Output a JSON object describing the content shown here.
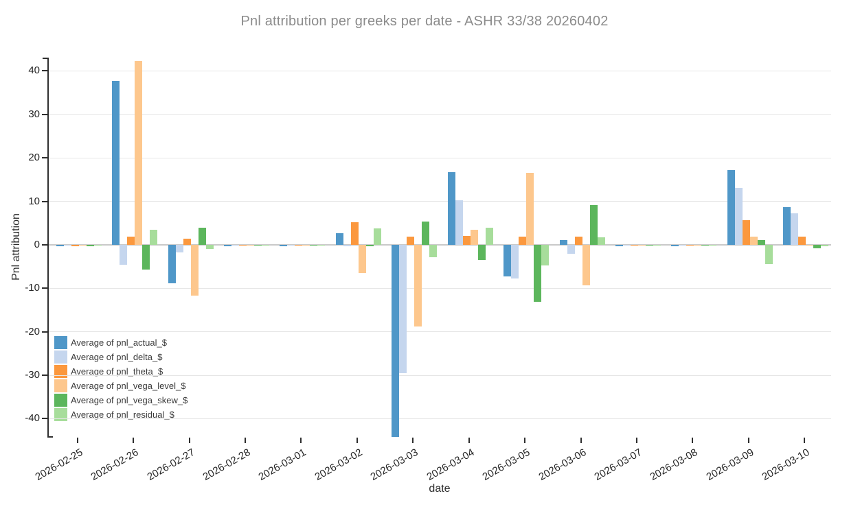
{
  "title": "Pnl attribution per greeks per date - ASHR 33/38 20260402",
  "chart_data": {
    "type": "bar",
    "title": "Pnl attribution per greeks per date - ASHR 33/38 20260402",
    "xlabel": "date",
    "ylabel": "Pnl attribution",
    "ylim": [
      -44.2,
      42.9
    ],
    "yticks": [
      40,
      30,
      20,
      10,
      0,
      -10,
      -20,
      -30,
      -40
    ],
    "grid": true,
    "legend_position": "inside-bottom-left",
    "categories": [
      "2026-02-25",
      "2026-02-26",
      "2026-02-27",
      "2026-02-28",
      "2026-03-01",
      "2026-03-02",
      "2026-03-03",
      "2026-03-04",
      "2026-03-05",
      "2026-03-06",
      "2026-03-07",
      "2026-03-08",
      "2026-03-09",
      "2026-03-10"
    ],
    "series": [
      {
        "name": "Average of pnl_actual_$",
        "color": "#4F97C8",
        "values": [
          -0.3,
          37.7,
          -8.8,
          -0.3,
          -0.3,
          2.6,
          -44.2,
          16.7,
          -7.2,
          1.1,
          -0.3,
          -0.3,
          17.2,
          8.7
        ]
      },
      {
        "name": "Average of pnl_delta_$",
        "color": "#C5D6EE",
        "values": [
          -0.2,
          -4.6,
          -1.8,
          -0.2,
          -0.2,
          -0.3,
          -29.5,
          10.3,
          -7.8,
          -2.1,
          -0.2,
          -0.2,
          13.0,
          7.3
        ]
      },
      {
        "name": "Average of pnl_theta_$",
        "color": "#FB983E",
        "values": [
          -0.3,
          1.9,
          1.4,
          -0.2,
          -0.2,
          5.2,
          1.9,
          2.1,
          1.8,
          1.8,
          -0.2,
          -0.2,
          5.7,
          1.9
        ]
      },
      {
        "name": "Average of pnl_vega_level_$",
        "color": "#FDC78D",
        "values": [
          -0.2,
          42.3,
          -11.7,
          -0.2,
          -0.2,
          -6.5,
          -18.8,
          3.4,
          16.5,
          -9.4,
          -0.2,
          -0.2,
          1.8,
          -0.2
        ]
      },
      {
        "name": "Average of pnl_vega_skew_$",
        "color": "#5CB65C",
        "values": [
          -0.3,
          -5.7,
          4.0,
          -0.2,
          -0.2,
          -0.4,
          5.4,
          -3.5,
          -13.1,
          9.1,
          -0.2,
          -0.2,
          1.1,
          -0.8
        ]
      },
      {
        "name": "Average of pnl_residual_$",
        "color": "#A7DD9B",
        "values": [
          -0.2,
          3.5,
          -0.9,
          -0.2,
          -0.2,
          3.7,
          -2.9,
          4.0,
          -4.7,
          1.7,
          -0.2,
          -0.2,
          -4.4,
          -0.4
        ]
      }
    ]
  }
}
